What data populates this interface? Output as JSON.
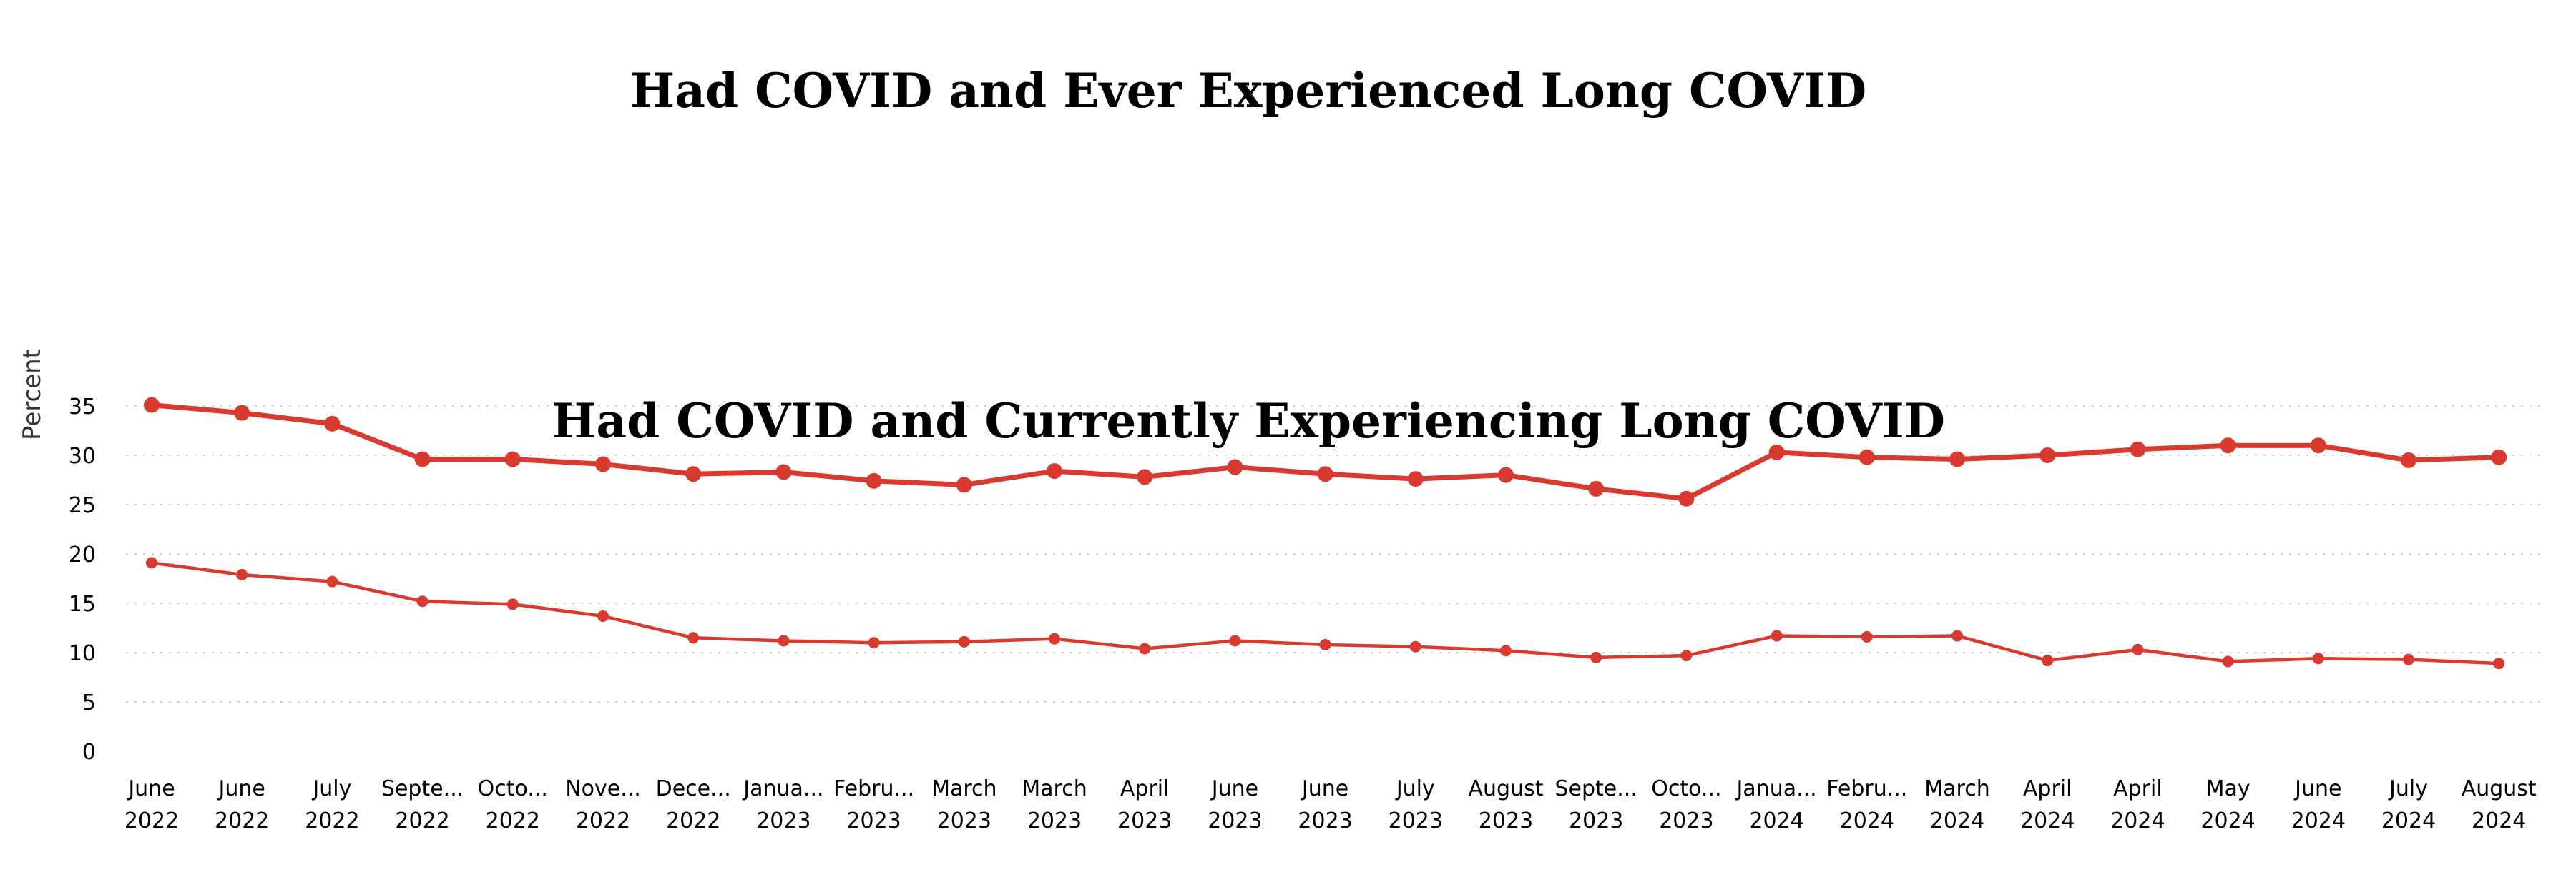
{
  "chart_data": {
    "type": "line",
    "ylabel": "Percent",
    "xlabel": "",
    "ylim": [
      0,
      36
    ],
    "yticks": [
      0,
      5,
      10,
      15,
      20,
      25,
      30,
      35
    ],
    "grid": true,
    "categories": [
      {
        "line1": "June",
        "line2": "2022"
      },
      {
        "line1": "June",
        "line2": "2022"
      },
      {
        "line1": "July",
        "line2": "2022"
      },
      {
        "line1": "Septe...",
        "line2": "2022"
      },
      {
        "line1": "Octo...",
        "line2": "2022"
      },
      {
        "line1": "Nove...",
        "line2": "2022"
      },
      {
        "line1": "Dece...",
        "line2": "2022"
      },
      {
        "line1": "Janua...",
        "line2": "2023"
      },
      {
        "line1": "Febru...",
        "line2": "2023"
      },
      {
        "line1": "March",
        "line2": "2023"
      },
      {
        "line1": "March",
        "line2": "2023"
      },
      {
        "line1": "April",
        "line2": "2023"
      },
      {
        "line1": "June",
        "line2": "2023"
      },
      {
        "line1": "June",
        "line2": "2023"
      },
      {
        "line1": "July",
        "line2": "2023"
      },
      {
        "line1": "August",
        "line2": "2023"
      },
      {
        "line1": "Septe...",
        "line2": "2023"
      },
      {
        "line1": "Octo...",
        "line2": "2023"
      },
      {
        "line1": "Janua...",
        "line2": "2024"
      },
      {
        "line1": "Febru...",
        "line2": "2024"
      },
      {
        "line1": "March",
        "line2": "2024"
      },
      {
        "line1": "April",
        "line2": "2024"
      },
      {
        "line1": "April",
        "line2": "2024"
      },
      {
        "line1": "May",
        "line2": "2024"
      },
      {
        "line1": "June",
        "line2": "2024"
      },
      {
        "line1": "July",
        "line2": "2024"
      },
      {
        "line1": "August",
        "line2": "2024"
      }
    ],
    "series": [
      {
        "name": "Had COVID and Ever Experienced Long COVID",
        "color": "#d83a2f",
        "emphasis": "thick",
        "values": [
          35.1,
          34.3,
          33.2,
          29.6,
          29.6,
          29.1,
          28.1,
          28.3,
          27.4,
          27.0,
          28.4,
          27.8,
          28.8,
          28.1,
          27.6,
          28.0,
          26.6,
          25.6,
          30.3,
          29.8,
          29.6,
          30.0,
          30.6,
          31.0,
          31.0,
          29.5,
          29.8
        ]
      },
      {
        "name": "Had COVID and Currently Experiencing Long COVID",
        "color": "#d83a2f",
        "emphasis": "thin",
        "values": [
          19.1,
          17.9,
          17.2,
          15.2,
          14.9,
          13.7,
          11.5,
          11.2,
          11.0,
          11.1,
          11.4,
          10.4,
          11.2,
          10.8,
          10.6,
          10.2,
          9.5,
          9.7,
          11.7,
          11.6,
          11.7,
          9.2,
          10.3,
          9.1,
          9.4,
          9.3,
          8.9
        ]
      }
    ]
  }
}
